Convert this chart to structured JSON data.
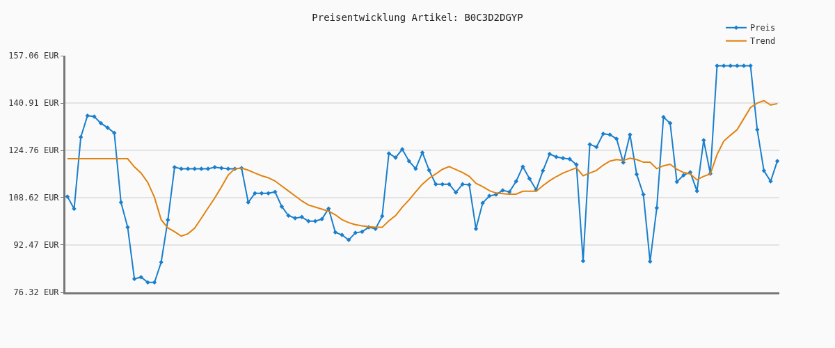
{
  "chart_data": {
    "type": "line",
    "title": "Preisentwicklung Artikel: B0C3D2DGYP",
    "categories": [
      null,
      null,
      null,
      null,
      null,
      null,
      null,
      null,
      null,
      null,
      null,
      null,
      null,
      null,
      null,
      null,
      null,
      null,
      null,
      null,
      null,
      null,
      null,
      null,
      null,
      null,
      null,
      null,
      null,
      null,
      null,
      null,
      null,
      null,
      null,
      null,
      null,
      null,
      null,
      null,
      null,
      null,
      null,
      null,
      null,
      null,
      null,
      null,
      null,
      null,
      null,
      null,
      null,
      null,
      null,
      null,
      null,
      null,
      null,
      null,
      null,
      null,
      null,
      null,
      null,
      null,
      null,
      null,
      null,
      null,
      null,
      null,
      null,
      null,
      null,
      null,
      null,
      null,
      null,
      null,
      null,
      null,
      null,
      null,
      null,
      null,
      null,
      null,
      null,
      null,
      null,
      null,
      null,
      null,
      null,
      null,
      null,
      null,
      null,
      null,
      null,
      null,
      null,
      null,
      null,
      null,
      null
    ],
    "series": [
      {
        "name": "Preis",
        "color": "#1a7fcc",
        "marker": "diamond",
        "values": [
          109.0,
          104.8,
          129.3,
          136.6,
          136.3,
          134.0,
          132.5,
          130.7,
          107.0,
          98.5,
          80.9,
          81.5,
          79.7,
          79.7,
          86.6,
          101.0,
          119.0,
          118.5,
          118.5,
          118.5,
          118.5,
          118.5,
          119.0,
          118.7,
          118.5,
          118.5,
          118.7,
          107.0,
          110.1,
          110.1,
          110.1,
          110.6,
          105.6,
          102.5,
          101.6,
          102.0,
          100.6,
          100.6,
          101.3,
          104.9,
          96.8,
          95.9,
          94.2,
          96.6,
          97.0,
          98.5,
          98.0,
          102.3,
          123.7,
          122.3,
          125.1,
          121.1,
          118.5,
          124.0,
          118.0,
          113.2,
          113.2,
          113.2,
          110.4,
          113.2,
          113.0,
          98.0,
          106.8,
          109.2,
          109.7,
          111.1,
          110.6,
          114.2,
          119.2,
          115.1,
          111.3,
          117.8,
          123.5,
          122.5,
          122.1,
          121.8,
          119.9,
          87.0,
          126.8,
          125.9,
          130.4,
          130.1,
          128.7,
          120.6,
          130.1,
          116.6,
          109.7,
          86.8,
          105.1,
          136.1,
          134.0,
          114.0,
          116.3,
          117.3,
          110.9,
          128.2,
          116.8,
          153.6,
          153.6,
          153.6,
          153.6,
          153.6,
          153.6,
          131.8,
          117.8,
          114.2,
          121.1
        ]
      },
      {
        "name": "Trend",
        "color": "#e0820f",
        "marker": "none",
        "values": [
          121.9,
          121.9,
          121.9,
          121.9,
          121.9,
          121.9,
          121.9,
          121.9,
          121.9,
          121.9,
          119.1,
          117.0,
          113.8,
          108.7,
          101.1,
          98.3,
          97.0,
          95.5,
          96.3,
          98.2,
          101.6,
          105.1,
          108.5,
          112.3,
          116.3,
          118.5,
          118.7,
          118.0,
          117.0,
          116.1,
          115.4,
          114.3,
          112.6,
          110.9,
          109.2,
          107.5,
          106.1,
          105.4,
          104.7,
          104.0,
          102.8,
          101.1,
          100.1,
          99.4,
          99.0,
          98.7,
          98.5,
          98.5,
          100.7,
          102.5,
          105.4,
          107.8,
          110.6,
          113.2,
          115.2,
          116.7,
          118.3,
          119.2,
          118.2,
          117.2,
          115.9,
          113.5,
          112.4,
          111.0,
          110.2,
          110.0,
          109.8,
          109.8,
          110.8,
          110.8,
          110.8,
          112.7,
          114.4,
          115.8,
          117.0,
          117.9,
          118.8,
          116.1,
          117.0,
          117.9,
          119.7,
          121.1,
          121.6,
          121.3,
          122.1,
          121.6,
          120.7,
          120.7,
          118.5,
          119.5,
          120.0,
          118.3,
          117.2,
          116.7,
          114.7,
          115.9,
          116.7,
          123.3,
          127.9,
          129.9,
          131.8,
          135.6,
          139.4,
          140.9,
          141.7,
          140.2,
          140.7
        ]
      }
    ],
    "ylim": [
      76.32,
      157.06
    ],
    "yticks": [
      {
        "value": 76.32,
        "label": "76.32 EUR"
      },
      {
        "value": 92.47,
        "label": "92.47 EUR"
      },
      {
        "value": 108.62,
        "label": "108.62 EUR"
      },
      {
        "value": 124.76,
        "label": "124.76 EUR"
      },
      {
        "value": 140.91,
        "label": "140.91 EUR"
      },
      {
        "value": 157.06,
        "label": "157.06 EUR"
      }
    ],
    "grid": "y",
    "legend": "top right",
    "tick_labels": "y",
    "line_style": "solid"
  }
}
